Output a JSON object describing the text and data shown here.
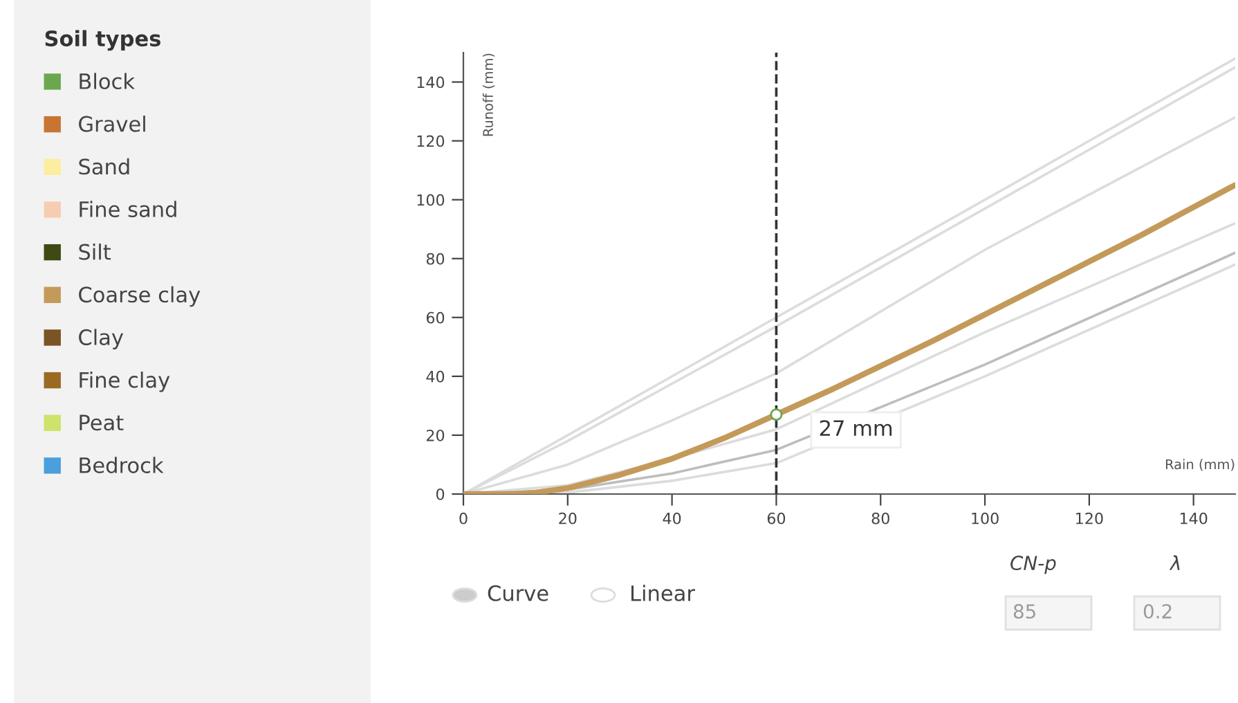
{
  "chart_data": {
    "type": "line",
    "legend_title": "Soil types",
    "legend": "left",
    "xlabel": "Rain (mm)",
    "ylabel": "Runoff (mm)",
    "xlim": [
      0,
      148
    ],
    "xticks": [
      0,
      20,
      40,
      60,
      80,
      100,
      120,
      140
    ],
    "ylim": [
      0,
      150
    ],
    "yticks": [
      0,
      20,
      40,
      60,
      80,
      100,
      120,
      140
    ],
    "grid": false,
    "x": [
      0,
      10,
      14,
      20,
      30,
      40,
      50,
      60,
      70,
      80,
      90,
      100,
      110,
      120,
      130,
      140,
      148
    ],
    "series": [
      {
        "name": "Block",
        "color": "#6aa84f",
        "values": [
          null,
          null,
          null,
          null,
          null,
          null,
          null,
          null,
          null,
          null,
          null,
          null,
          null,
          null,
          null,
          null,
          null
        ]
      },
      {
        "name": "Gravel",
        "color": "#c87533",
        "values": [
          null,
          null,
          null,
          null,
          null,
          null,
          null,
          null,
          null,
          null,
          null,
          null,
          null,
          null,
          null,
          null,
          null
        ]
      },
      {
        "name": "Sand",
        "color": "#fbeea0",
        "values": [
          null,
          null,
          null,
          null,
          null,
          null,
          null,
          null,
          null,
          null,
          null,
          null,
          null,
          null,
          null,
          null,
          null
        ]
      },
      {
        "name": "Fine sand",
        "color": "#f7cdb2",
        "values": [
          null,
          null,
          null,
          null,
          null,
          null,
          null,
          null,
          null,
          null,
          null,
          null,
          null,
          null,
          null,
          null,
          null
        ]
      },
      {
        "name": "Silt",
        "color": "#3d4a14",
        "values": [
          null,
          null,
          null,
          null,
          null,
          null,
          null,
          null,
          null,
          null,
          null,
          null,
          null,
          null,
          null,
          null,
          null
        ]
      },
      {
        "name": "Coarse clay",
        "color": "#c49a5a",
        "values": [
          0,
          0,
          0.5,
          2,
          6.5,
          12,
          19,
          27,
          35,
          43.5,
          52,
          61,
          70,
          79,
          88,
          97.5,
          105
        ]
      },
      {
        "name": "Clay",
        "color": "#7a5424",
        "values": [
          null,
          null,
          null,
          null,
          null,
          null,
          null,
          null,
          null,
          null,
          null,
          null,
          null,
          null,
          null,
          null,
          null
        ]
      },
      {
        "name": "Fine clay",
        "color": "#9a6a22",
        "values": [
          null,
          null,
          null,
          null,
          null,
          null,
          null,
          null,
          null,
          null,
          null,
          null,
          null,
          null,
          null,
          null,
          null
        ]
      },
      {
        "name": "Peat",
        "color": "#cde36a",
        "values": [
          null,
          null,
          null,
          null,
          null,
          null,
          null,
          null,
          null,
          null,
          null,
          null,
          null,
          null,
          null,
          null,
          null
        ]
      },
      {
        "name": "Bedrock",
        "color": "#4a9fdc",
        "values": [
          null,
          null,
          null,
          null,
          null,
          null,
          null,
          null,
          null,
          null,
          null,
          null,
          null,
          null,
          null,
          null,
          null
        ]
      },
      {
        "color": "#dcdcdc",
        "x": [
          0,
          60,
          148
        ],
        "values": [
          0,
          60,
          148
        ]
      },
      {
        "color": "#dcdcdc",
        "x": [
          0,
          20,
          60,
          148
        ],
        "values": [
          0,
          18,
          57,
          145
        ]
      },
      {
        "color": "#dcdcdc",
        "x": [
          0,
          20,
          40,
          60,
          100,
          148
        ],
        "values": [
          0,
          10,
          25,
          41,
          83,
          128
        ]
      },
      {
        "color": "#dcdcdc",
        "x": [
          0,
          20,
          40,
          60,
          100,
          148
        ],
        "values": [
          0,
          3,
          12,
          22,
          55,
          92
        ]
      },
      {
        "color": "#bdbdbd",
        "x": [
          0,
          20,
          40,
          60,
          100,
          148
        ],
        "values": [
          0,
          1.5,
          7,
          15,
          44,
          82
        ]
      },
      {
        "color": "#dcdcdc",
        "x": [
          0,
          20,
          40,
          60,
          100,
          148
        ],
        "values": [
          0,
          0.5,
          4.5,
          10.5,
          40,
          78
        ]
      }
    ],
    "ref_lines": [
      {
        "axis": "x",
        "value": 60,
        "color": "#333333",
        "line_style": "dashed"
      }
    ],
    "annotations": [
      {
        "text": "27 mm",
        "x": 60,
        "y": 27
      },
      "Curve",
      "Linear",
      "CN-p",
      "85",
      "λ",
      "0.2"
    ]
  }
}
